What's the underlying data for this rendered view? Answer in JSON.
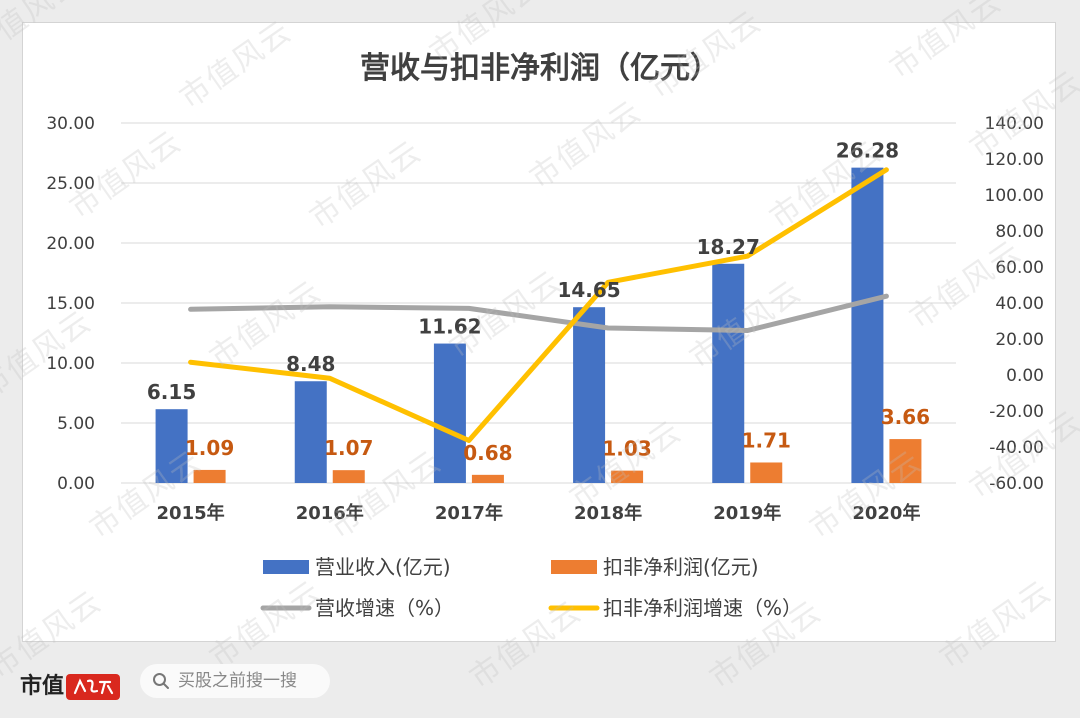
{
  "footer": {
    "brand": "市值",
    "search_placeholder": "买股之前搜一搜",
    "watermark_text": "市值风云"
  },
  "chart_data": {
    "type": "bar+line",
    "title": "营收与扣非净利润（亿元）",
    "categories": [
      "2015年",
      "2016年",
      "2017年",
      "2018年",
      "2019年",
      "2020年"
    ],
    "left_axis": {
      "ylim": [
        0,
        30
      ],
      "ticks": [
        "0.00",
        "5.00",
        "10.00",
        "15.00",
        "20.00",
        "25.00",
        "30.00"
      ]
    },
    "right_axis": {
      "ylim": [
        -60,
        140
      ],
      "ticks": [
        "-60.00",
        "-40.00",
        "-20.00",
        "0.00",
        "20.00",
        "40.00",
        "60.00",
        "80.00",
        "100.00",
        "120.00",
        "140.00"
      ]
    },
    "bar_series": [
      {
        "name": "营业收入(亿元)",
        "color": "#4472c4",
        "label_color": "#404040",
        "values": [
          6.15,
          8.48,
          11.62,
          14.65,
          18.27,
          26.28
        ],
        "labels": [
          "6.15",
          "8.48",
          "11.62",
          "14.65",
          "18.27",
          "26.28"
        ]
      },
      {
        "name": "扣非净利润(亿元)",
        "color": "#ed7d31",
        "label_color": "#c65911",
        "values": [
          1.09,
          1.07,
          0.68,
          1.03,
          1.71,
          3.66
        ],
        "labels": [
          "1.09",
          "1.07",
          "0.68",
          "1.03",
          "1.71",
          "3.66"
        ]
      }
    ],
    "line_series": [
      {
        "name": "营收增速（%）",
        "color": "#a5a5a5",
        "values": [
          36.5,
          37.9,
          37.0,
          26.1,
          24.7,
          43.8
        ]
      },
      {
        "name": "扣非净利润增速（%）",
        "color": "#ffc000",
        "values": [
          7.1,
          -1.8,
          -36.4,
          51.5,
          66.0,
          114.0
        ]
      }
    ],
    "legend": [
      "营业收入(亿元)",
      "扣非净利润(亿元)",
      "营收增速（%）",
      "扣非净利润增速（%）"
    ],
    "legend_position": "bottom",
    "grid": true
  }
}
